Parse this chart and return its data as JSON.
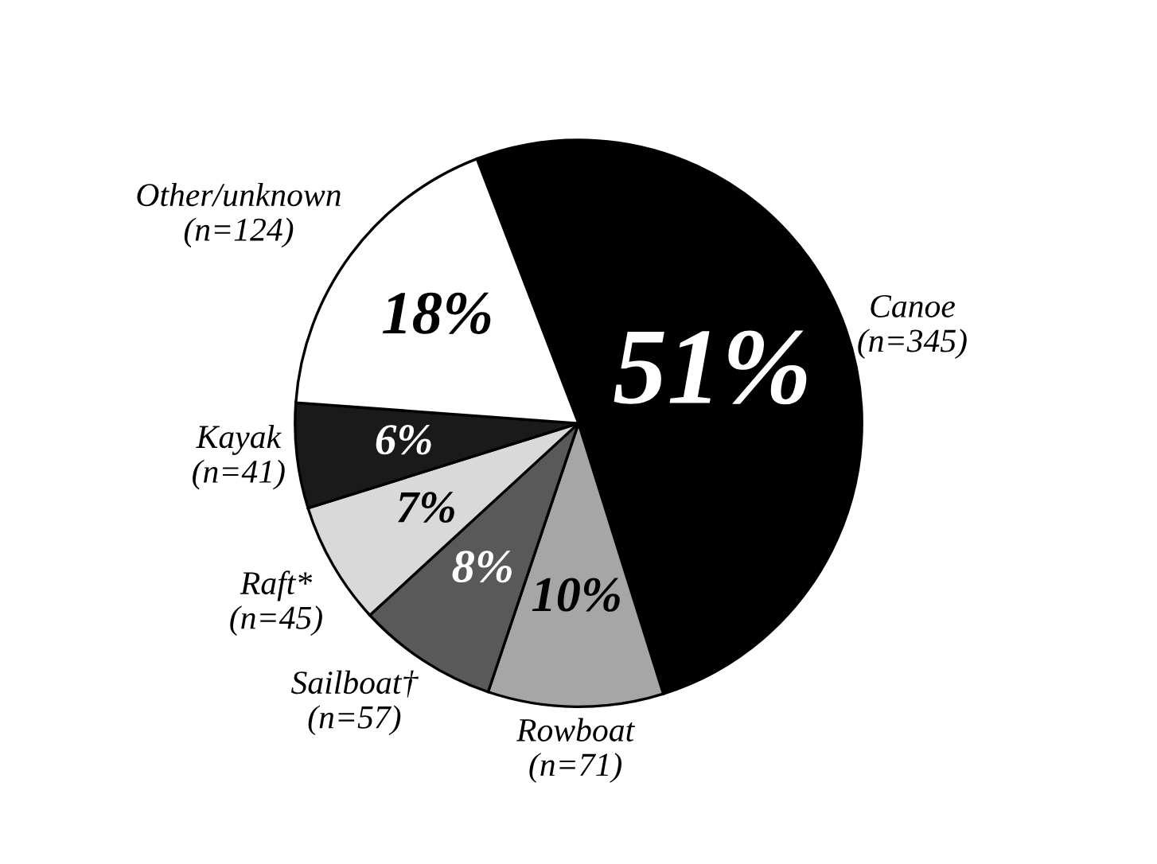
{
  "chart_data": {
    "type": "pie",
    "categories": [
      "Canoe\n(n=345)",
      "Rowboat\n(n=71)",
      "Sailboat†\n(n=57)",
      "Raft*\n(n=45)",
      "Kayak\n(n=41)",
      "Other/unknown\n(n=124)"
    ],
    "values": [
      51,
      10,
      8,
      7,
      6,
      18
    ],
    "value_labels": [
      "51%",
      "10%",
      "8%",
      "7%",
      "6%",
      "18%"
    ],
    "colors": [
      "#000000",
      "#a6a6a6",
      "#595959",
      "#d9d9d9",
      "#1a1a1a",
      "#ffffff"
    ]
  }
}
